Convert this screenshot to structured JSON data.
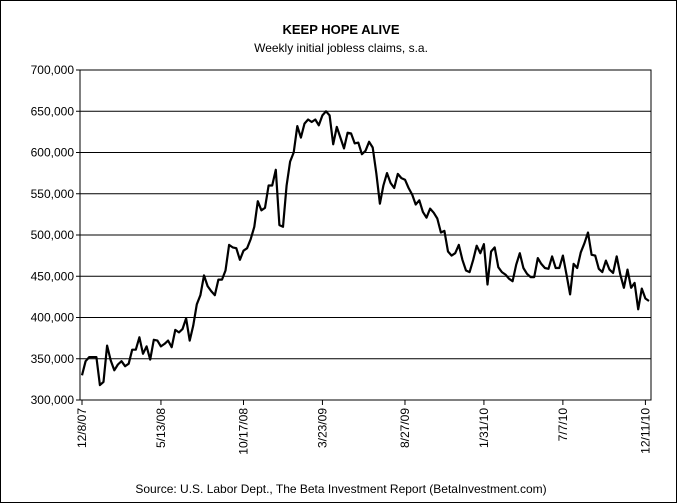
{
  "chart_data": {
    "type": "line",
    "title": "KEEP HOPE ALIVE",
    "subtitle": "Weekly initial jobless claims, s.a.",
    "source": "Source: U.S. Labor Dept., The Beta Investment Report (BetaInvestment.com)",
    "xlabel": "",
    "ylabel": "",
    "ylim": [
      300000,
      700000
    ],
    "y_ticks": [
      "300,000",
      "350,000",
      "400,000",
      "450,000",
      "500,000",
      "550,000",
      "600,000",
      "650,000",
      "700,000"
    ],
    "y_tick_values": [
      300000,
      350000,
      400000,
      450000,
      500000,
      550000,
      600000,
      650000,
      700000
    ],
    "x_ticks": [
      {
        "label": "12/8/07",
        "week": 0
      },
      {
        "label": "5/13/08",
        "week": 22
      },
      {
        "label": "10/17/08",
        "week": 45
      },
      {
        "label": "3/23/09",
        "week": 67
      },
      {
        "label": "8/27/09",
        "week": 90
      },
      {
        "label": "1/31/10",
        "week": 112
      },
      {
        "label": "7/7/10",
        "week": 134
      },
      {
        "label": "12/11/10",
        "week": 157
      }
    ],
    "grid": true,
    "colors": {
      "line": "#000000",
      "grid": "#000000",
      "plot_bg": "#ffffff"
    },
    "series": [
      {
        "values": [
          330000,
          347000,
          352000,
          352000,
          352000,
          318000,
          322000,
          366000,
          348000,
          336000,
          343000,
          347000,
          341000,
          344000,
          361000,
          361000,
          376000,
          356000,
          365000,
          349000,
          373000,
          372000,
          365000,
          368000,
          372000,
          364000,
          385000,
          382000,
          386000,
          399000,
          372000,
          390000,
          416000,
          427000,
          451000,
          438000,
          432000,
          427000,
          446000,
          446000,
          457000,
          488000,
          485000,
          484000,
          470000,
          481000,
          484000,
          495000,
          510000,
          541000,
          530000,
          533000,
          560000,
          560000,
          579000,
          512000,
          510000,
          560000,
          589000,
          600000,
          632000,
          618000,
          635000,
          640000,
          637000,
          640000,
          633000,
          645000,
          650000,
          645000,
          610000,
          631000,
          618000,
          605000,
          624000,
          623000,
          611000,
          612000,
          598000,
          602000,
          613000,
          606000,
          575000,
          538000,
          560000,
          575000,
          563000,
          557000,
          574000,
          569000,
          567000,
          557000,
          549000,
          537000,
          542000,
          528000,
          521000,
          532000,
          527000,
          520000,
          503000,
          505000,
          480000,
          475000,
          478000,
          488000,
          470000,
          457000,
          455000,
          470000,
          487000,
          478000,
          489000,
          440000,
          480000,
          485000,
          461000,
          455000,
          452000,
          447000,
          444000,
          464000,
          478000,
          460000,
          453000,
          449000,
          449000,
          472000,
          465000,
          460000,
          459000,
          474000,
          460000,
          460000,
          475000,
          452000,
          428000,
          465000,
          460000,
          479000,
          490000,
          503000,
          476000,
          475000,
          459000,
          455000,
          469000,
          458000,
          454000,
          474000,
          452000,
          436000,
          458000,
          436000,
          442000,
          410000,
          435000,
          423000,
          420000
        ]
      }
    ]
  }
}
